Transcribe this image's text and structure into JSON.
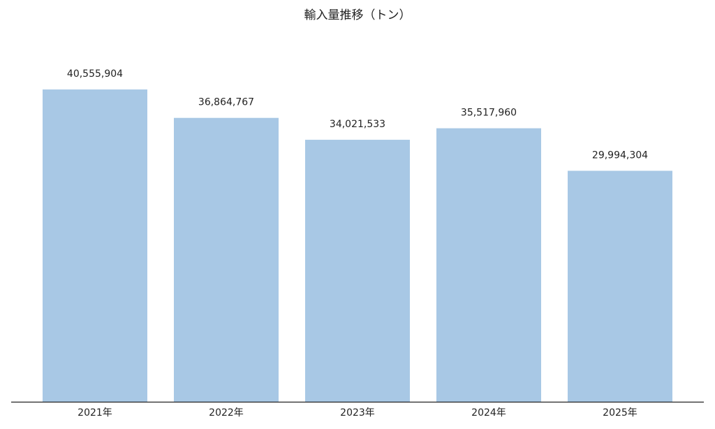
{
  "chart_data": {
    "type": "bar",
    "title": "輸入量推移（トン）",
    "categories": [
      "2021年",
      "2022年",
      "2023年",
      "2024年",
      "2025年"
    ],
    "values": [
      40555904,
      36864767,
      34021533,
      35517960,
      29994304
    ],
    "value_labels": [
      "40,555,904",
      "36,864,767",
      "34,021,533",
      "35,517,960",
      "29,994,304"
    ],
    "color": "#a8c8e5"
  }
}
